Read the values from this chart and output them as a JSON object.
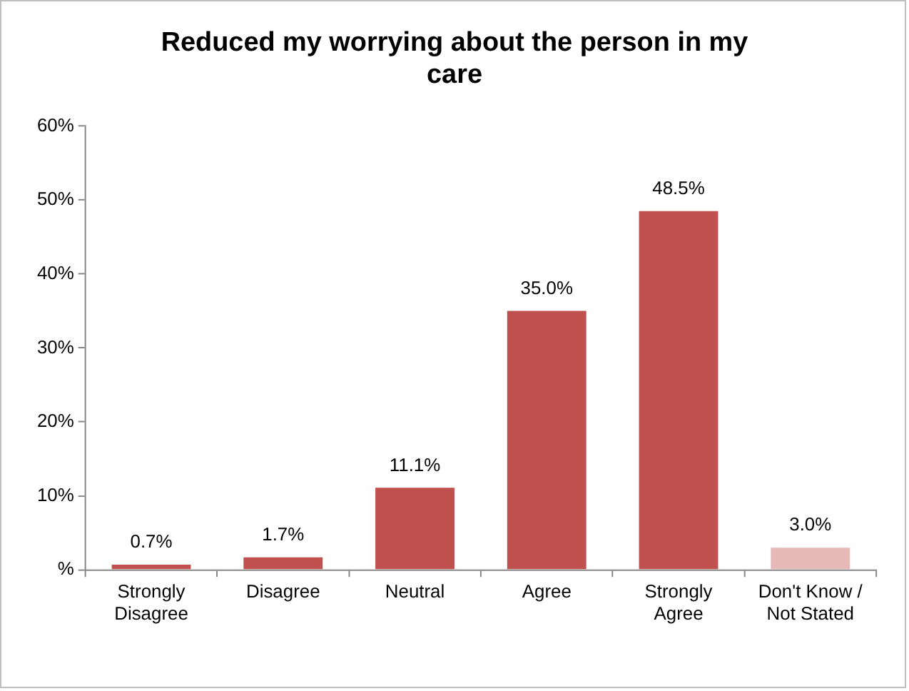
{
  "chart_data": {
    "type": "bar",
    "title": "Reduced my worrying about the person in my care",
    "categories": [
      "Strongly Disagree",
      "Disagree",
      "Neutral",
      "Agree",
      "Strongly Agree",
      "Don't Know / Not Stated"
    ],
    "values": [
      0.7,
      1.7,
      11.1,
      35.0,
      48.5,
      3.0
    ],
    "colors": [
      "#c0504d",
      "#c0504d",
      "#c0504d",
      "#c0504d",
      "#c0504d",
      "#e6b9b8"
    ],
    "value_labels": [
      "0.7%",
      "1.7%",
      "11.1%",
      "35.0%",
      "48.5%",
      "3.0%"
    ],
    "ylim": [
      0,
      60
    ],
    "yticks": [
      {
        "value": 0,
        "label": "%"
      },
      {
        "value": 10,
        "label": "10%"
      },
      {
        "value": 20,
        "label": "20%"
      },
      {
        "value": 30,
        "label": "30%"
      },
      {
        "value": 40,
        "label": "40%"
      },
      {
        "value": 50,
        "label": "50%"
      },
      {
        "value": 60,
        "label": "60%"
      }
    ],
    "grid": false,
    "legend": false
  }
}
